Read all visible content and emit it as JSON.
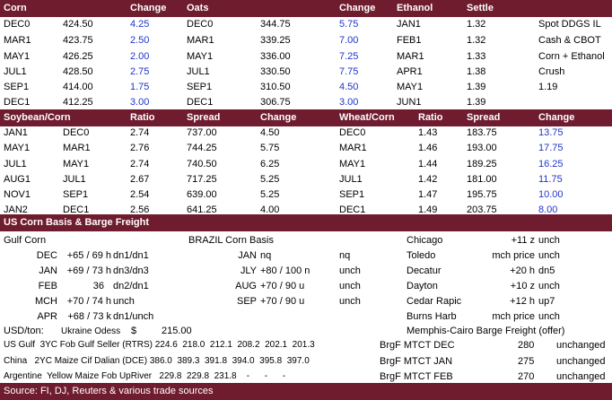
{
  "section1": {
    "headers": [
      "Corn",
      "Change",
      "Oats",
      "Change",
      "Ethanol",
      "Settle"
    ],
    "corn": [
      [
        "DEC0",
        "424.50",
        "4.25"
      ],
      [
        "MAR1",
        "423.75",
        "2.50"
      ],
      [
        "MAY1",
        "426.25",
        "2.00"
      ],
      [
        "JUL1",
        "428.50",
        "2.75"
      ],
      [
        "SEP1",
        "414.00",
        "1.75"
      ],
      [
        "DEC1",
        "412.25",
        "3.00"
      ]
    ],
    "oats": [
      [
        "DEC0",
        "344.75",
        "5.75"
      ],
      [
        "MAR1",
        "339.25",
        "7.00"
      ],
      [
        "MAY1",
        "336.00",
        "7.25"
      ],
      [
        "JUL1",
        "330.50",
        "7.75"
      ],
      [
        "SEP1",
        "310.50",
        "4.50"
      ],
      [
        "DEC1",
        "306.75",
        "3.00"
      ]
    ],
    "ethanol": [
      [
        "JAN1",
        "1.32"
      ],
      [
        "FEB1",
        "1.32"
      ],
      [
        "MAR1",
        "1.33"
      ],
      [
        "APR1",
        "1.38"
      ],
      [
        "MAY1",
        "1.39"
      ],
      [
        "JUN1",
        "1.39"
      ]
    ],
    "notes": [
      "Spot DDGS IL",
      "Cash & CBOT",
      "Corn + Ethanol",
      "Crush",
      "1.19",
      ""
    ]
  },
  "section2": {
    "headers": [
      "Soybean/Corn",
      "Ratio",
      "Spread",
      "Change",
      "Wheat/Corn",
      "Ratio",
      "Spread",
      "Change"
    ],
    "rows": [
      [
        "JAN1",
        "DEC0",
        "2.74",
        "737.00",
        "4.50",
        "DEC0",
        "1.43",
        "183.75",
        "13.75"
      ],
      [
        "MAY1",
        "MAR1",
        "2.76",
        "744.25",
        "5.75",
        "MAR1",
        "1.46",
        "193.00",
        "17.75"
      ],
      [
        "JUL1",
        "MAY1",
        "2.74",
        "740.50",
        "6.25",
        "MAY1",
        "1.44",
        "189.25",
        "16.25"
      ],
      [
        "AUG1",
        "JUL1",
        "2.67",
        "717.25",
        "5.25",
        "JUL1",
        "1.42",
        "181.00",
        "11.75"
      ],
      [
        "NOV1",
        "SEP1",
        "2.54",
        "639.00",
        "5.25",
        "SEP1",
        "1.47",
        "195.75",
        "10.00"
      ],
      [
        "JAN2",
        "DEC1",
        "2.56",
        "641.25",
        "4.00",
        "DEC1",
        "1.49",
        "203.75",
        "8.00"
      ]
    ]
  },
  "section3": {
    "title": "US Corn Basis & Barge Freight",
    "gulf_label": "Gulf Corn",
    "brazil_label": "BRAZIL Corn Basis",
    "gulf": [
      [
        "DEC",
        "+65 / 69 h",
        "dn1/dn1"
      ],
      [
        "JAN",
        "+69 / 73 h",
        "dn3/dn3"
      ],
      [
        "FEB",
        "36",
        "dn2/dn1"
      ],
      [
        "MCH",
        "+70 / 74 h",
        "unch"
      ],
      [
        "APR",
        "+68 / 73 k",
        "dn1/unch"
      ]
    ],
    "brazil": [
      [
        "JAN",
        "nq",
        "nq"
      ],
      [
        "JLY",
        "+80 / 100 n",
        "unch"
      ],
      [
        "AUG",
        "+70 / 90 u",
        "unch"
      ],
      [
        "SEP",
        "+70 / 90 u",
        "unch"
      ]
    ],
    "interior": [
      [
        "Chicago",
        "+11 z",
        "unch"
      ],
      [
        "Toledo",
        "mch price",
        "unch"
      ],
      [
        "Decatur",
        "+20 h",
        "dn5"
      ],
      [
        "Dayton",
        "+10 z",
        "unch"
      ],
      [
        "Cedar Rapic",
        "+12 h",
        "up7"
      ],
      [
        "Burns Harb",
        "mch price",
        "unch"
      ]
    ],
    "usd_ton_label": "USD/ton:",
    "ukraine_label": "Ukraine Odess",
    "ukraine_currency": "$",
    "ukraine_value": "215.00",
    "barge_title": "Memphis-Cairo Barge Freight (offer)",
    "fob": [
      "US Gulf  3YC Fob Gulf Seller (RTRS) 224.6  218.0  212.1  208.2  202.1  201.3",
      "China   2YC Maize Cif Dalian (DCE) 386.0  389.3  391.8  394.0  395.8  397.0",
      "Argentine  Yellow Maize Fob UpRiver   229.8  229.8  231.8    -      -      -"
    ],
    "barge": [
      [
        "BrgF MTCT DEC",
        "280",
        "unchanged"
      ],
      [
        "BrgF MTCT JAN",
        "275",
        "unchanged"
      ],
      [
        "BrgF MTCT FEB",
        "270",
        "unchanged"
      ]
    ]
  },
  "footer": {
    "source": "Source: FI, DJ, Reuters & various trade sources"
  },
  "colors": {
    "header_bg": "#6f1c2e",
    "header_text": "#ffffff",
    "change_text": "#1f35c9"
  }
}
